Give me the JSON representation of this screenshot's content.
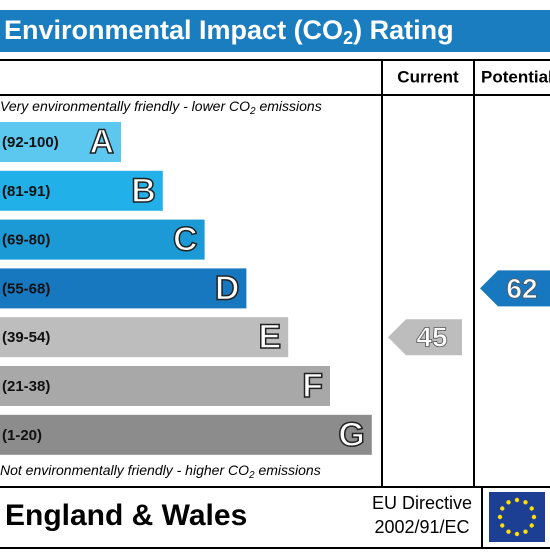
{
  "header": {
    "title": "Environmental Impact (CO",
    "title_sub": "2",
    "title_end": ") Rating"
  },
  "columns": {
    "current": "Current",
    "potential": "Potential"
  },
  "top_note": {
    "text": "Very environmentally friendly - lower CO",
    "sub": "2",
    "end": " emissions"
  },
  "bottom_note": {
    "text": "Not environmentally friendly - higher CO",
    "sub": "2",
    "end": " emissions"
  },
  "bands": [
    {
      "range": "(92-100)",
      "letter": "A",
      "color": "#5cc8f0"
    },
    {
      "range": "(81-91)",
      "letter": "B",
      "color": "#22b0e8"
    },
    {
      "range": "(69-80)",
      "letter": "C",
      "color": "#1b9ad6"
    },
    {
      "range": "(55-68)",
      "letter": "D",
      "color": "#1777bf"
    },
    {
      "range": "(39-54)",
      "letter": "E",
      "color": "#bdbdbd"
    },
    {
      "range": "(21-38)",
      "letter": "F",
      "color": "#a8a8a8"
    },
    {
      "range": "(1-20)",
      "letter": "G",
      "color": "#8c8c8c"
    }
  ],
  "ratings": {
    "current": 45,
    "potential": 62
  },
  "footer": {
    "region": "England & Wales",
    "directive": "EU Directive",
    "code": "2002/91/EC"
  }
}
